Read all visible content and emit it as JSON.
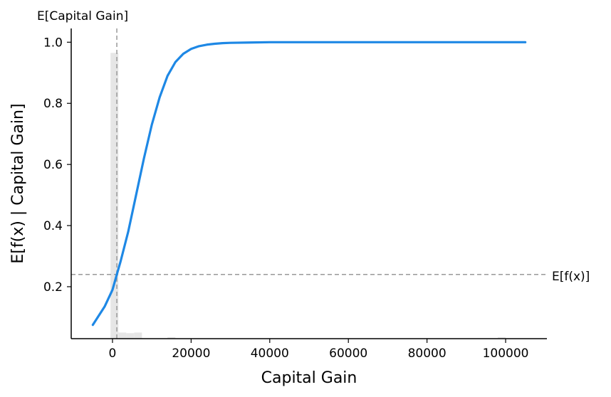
{
  "chart_data": {
    "type": "line",
    "title": "",
    "xlabel": "Capital Gain",
    "ylabel": "E[f(x) | Capital Gain]",
    "xlim": [
      -10500,
      110500
    ],
    "ylim": [
      0.03,
      1.045
    ],
    "xticks": [
      0,
      20000,
      40000,
      60000,
      80000,
      100000
    ],
    "xtick_labels": [
      "0",
      "20000",
      "40000",
      "60000",
      "80000",
      "100000"
    ],
    "yticks": [
      0.2,
      0.4,
      0.6,
      0.8,
      1.0
    ],
    "ytick_labels": [
      "0.2",
      "0.4",
      "0.6",
      "0.8",
      "1.0"
    ],
    "series": [
      {
        "name": "E[f(x) | Capital Gain]",
        "color": "#1E88E5",
        "x": [
          -5000,
          -2000,
          0,
          1100,
          2000,
          4000,
          6000,
          8000,
          10000,
          12000,
          14000,
          16000,
          18000,
          20000,
          22000,
          24000,
          26000,
          28000,
          30000,
          35000,
          40000,
          50000,
          60000,
          80000,
          100000,
          105000
        ],
        "y": [
          0.075,
          0.135,
          0.19,
          0.24,
          0.28,
          0.38,
          0.5,
          0.62,
          0.73,
          0.82,
          0.89,
          0.935,
          0.962,
          0.978,
          0.987,
          0.992,
          0.995,
          0.997,
          0.998,
          0.999,
          1.0,
          1.0,
          1.0,
          1.0,
          1.0,
          1.0
        ]
      }
    ],
    "histogram": {
      "color": "#e6e6e6",
      "bins": [
        {
          "x0": -500,
          "x1": 1500,
          "height": 0.965
        },
        {
          "x0": 1500,
          "x1": 3500,
          "height": 0.05
        },
        {
          "x0": 3500,
          "x1": 5500,
          "height": 0.048
        },
        {
          "x0": 5500,
          "x1": 7500,
          "height": 0.05
        },
        {
          "x0": 14000,
          "x1": 16000,
          "height": 0.035
        },
        {
          "x0": 98000,
          "x1": 100000,
          "height": 0.035
        }
      ]
    },
    "reference_lines": {
      "expected_value": 0.24,
      "expected_value_label": "E[f(x)]",
      "feature_mean": 1100,
      "feature_mean_label": "E[Capital Gain]",
      "color": "#999999"
    },
    "grid": false,
    "legend": "none"
  }
}
